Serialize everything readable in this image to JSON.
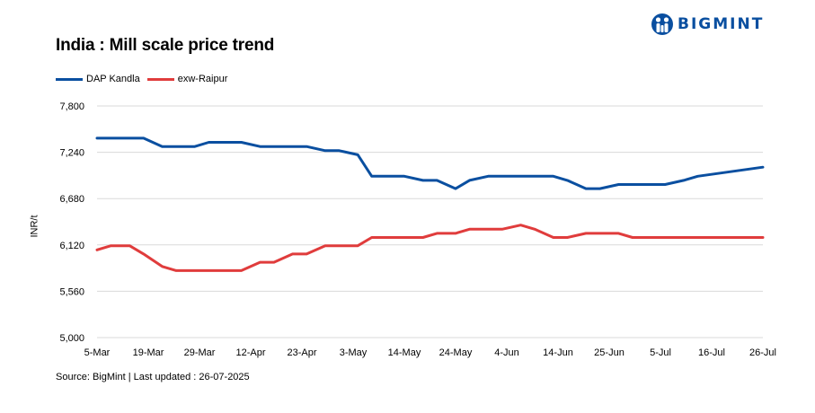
{
  "brand": {
    "name": "BIGMINT",
    "color": "#0a4fa0",
    "icon": "bigmint-logo-icon"
  },
  "source": "Source: BigMint | Last updated : 26-07-2025",
  "chart_data": {
    "type": "line",
    "title": "India : Mill scale price trend",
    "xlabel": "",
    "ylabel": "INR/t",
    "ylim": [
      5000,
      7800
    ],
    "yticks": [
      "7,800",
      "7,240",
      "6,680",
      "6,120",
      "5,560",
      "5,000"
    ],
    "ytick_values": [
      7800,
      7240,
      6680,
      6120,
      5560,
      5000
    ],
    "xticks": [
      "5-Mar",
      "19-Mar",
      "29-Mar",
      "12-Apr",
      "23-Apr",
      "3-May",
      "14-May",
      "24-May",
      "4-Jun",
      "14-Jun",
      "25-Jun",
      "5-Jul",
      "16-Jul",
      "26-Jul"
    ],
    "grid": "horizontal",
    "legend": "top-left",
    "series": [
      {
        "name": "DAP Kandla",
        "color": "#0a4fa0",
        "x": [
          "2025-03-05",
          "2025-03-08",
          "2025-03-12",
          "2025-03-15",
          "2025-03-19",
          "2025-03-22",
          "2025-03-26",
          "2025-03-29",
          "2025-04-02",
          "2025-04-05",
          "2025-04-09",
          "2025-04-12",
          "2025-04-16",
          "2025-04-19",
          "2025-04-23",
          "2025-04-26",
          "2025-04-30",
          "2025-05-03",
          "2025-05-06",
          "2025-05-10",
          "2025-05-14",
          "2025-05-17",
          "2025-05-21",
          "2025-05-24",
          "2025-05-28",
          "2025-05-31",
          "2025-06-04",
          "2025-06-07",
          "2025-06-11",
          "2025-06-14",
          "2025-06-18",
          "2025-06-21",
          "2025-06-25",
          "2025-06-28",
          "2025-07-02",
          "2025-07-05",
          "2025-07-09",
          "2025-07-12",
          "2025-07-26"
        ],
        "values": [
          7410,
          7410,
          7410,
          7410,
          7310,
          7310,
          7310,
          7360,
          7360,
          7360,
          7310,
          7310,
          7310,
          7310,
          7260,
          7260,
          7210,
          6950,
          6950,
          6950,
          6900,
          6900,
          6800,
          6900,
          6950,
          6950,
          6950,
          6950,
          6950,
          6900,
          6800,
          6800,
          6850,
          6850,
          6850,
          6850,
          6900,
          6950,
          7060
        ]
      },
      {
        "name": "exw-Raipur",
        "color": "#e03c3c",
        "x": [
          "2025-03-05",
          "2025-03-08",
          "2025-03-12",
          "2025-03-15",
          "2025-03-19",
          "2025-03-22",
          "2025-03-26",
          "2025-03-29",
          "2025-04-02",
          "2025-04-05",
          "2025-04-09",
          "2025-04-12",
          "2025-04-16",
          "2025-04-19",
          "2025-04-23",
          "2025-04-26",
          "2025-04-30",
          "2025-05-03",
          "2025-05-06",
          "2025-05-10",
          "2025-05-14",
          "2025-05-17",
          "2025-05-21",
          "2025-05-24",
          "2025-05-28",
          "2025-05-31",
          "2025-06-04",
          "2025-06-07",
          "2025-06-11",
          "2025-06-14",
          "2025-06-18",
          "2025-06-21",
          "2025-06-25",
          "2025-06-28",
          "2025-07-02",
          "2025-07-05",
          "2025-07-09",
          "2025-07-12",
          "2025-07-26"
        ],
        "values": [
          6060,
          6110,
          6110,
          6010,
          5860,
          5810,
          5810,
          5810,
          5810,
          5810,
          5910,
          5910,
          6010,
          6010,
          6110,
          6110,
          6110,
          6210,
          6210,
          6210,
          6210,
          6260,
          6260,
          6310,
          6310,
          6310,
          6360,
          6310,
          6210,
          6210,
          6260,
          6260,
          6260,
          6210,
          6210,
          6210,
          6210,
          6210,
          6210
        ]
      }
    ]
  }
}
